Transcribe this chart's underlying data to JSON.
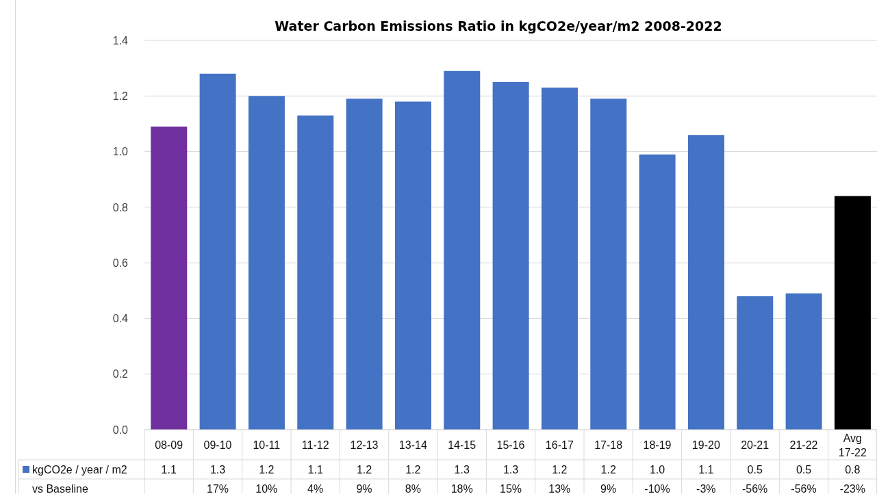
{
  "chart_data": {
    "type": "bar",
    "title": "Water Carbon Emissions Ratio in kgCO2e/year/m2 2008-2022",
    "categories": [
      "08-09",
      "09-10",
      "10-11",
      "11-12",
      "12-13",
      "13-14",
      "14-15",
      "15-16",
      "16-17",
      "17-18",
      "18-19",
      "19-20",
      "20-21",
      "21-22",
      "Avg 17-22"
    ],
    "series": [
      {
        "name": "kgCO2e / year / m2",
        "color": "#4472c4",
        "colors": [
          "#7030a0",
          "#4472c4",
          "#4472c4",
          "#4472c4",
          "#4472c4",
          "#4472c4",
          "#4472c4",
          "#4472c4",
          "#4472c4",
          "#4472c4",
          "#4472c4",
          "#4472c4",
          "#4472c4",
          "#4472c4",
          "#000000"
        ],
        "values": [
          1.09,
          1.28,
          1.2,
          1.13,
          1.19,
          1.18,
          1.29,
          1.25,
          1.23,
          1.19,
          0.99,
          1.06,
          0.48,
          0.49,
          0.84
        ],
        "value_labels": [
          "1.1",
          "1.3",
          "1.2",
          "1.1",
          "1.2",
          "1.2",
          "1.3",
          "1.3",
          "1.2",
          "1.2",
          "1.0",
          "1.1",
          "0.5",
          "0.5",
          "0.8"
        ]
      }
    ],
    "ylim": [
      0,
      1.4
    ],
    "yticks": [
      {
        "value": 0,
        "label": "0.0"
      },
      {
        "value": 0.2,
        "label": "0.2"
      },
      {
        "value": 0.4,
        "label": "0.4"
      },
      {
        "value": 0.6,
        "label": "0.6"
      },
      {
        "value": 0.8,
        "label": "0.8"
      },
      {
        "value": 1,
        "label": "1.0"
      },
      {
        "value": 1.2,
        "label": "1.2"
      },
      {
        "value": 1.4,
        "label": "1.4"
      }
    ],
    "grid": "y",
    "legend": "bottom left",
    "annotations": [
      "vs Baseline",
      "17%",
      "10%",
      "4%",
      "9%",
      "8%",
      "18%",
      "15%",
      "13%",
      "9%",
      "-10%",
      "-3%",
      "-56%",
      "-56%",
      "-23%"
    ]
  }
}
